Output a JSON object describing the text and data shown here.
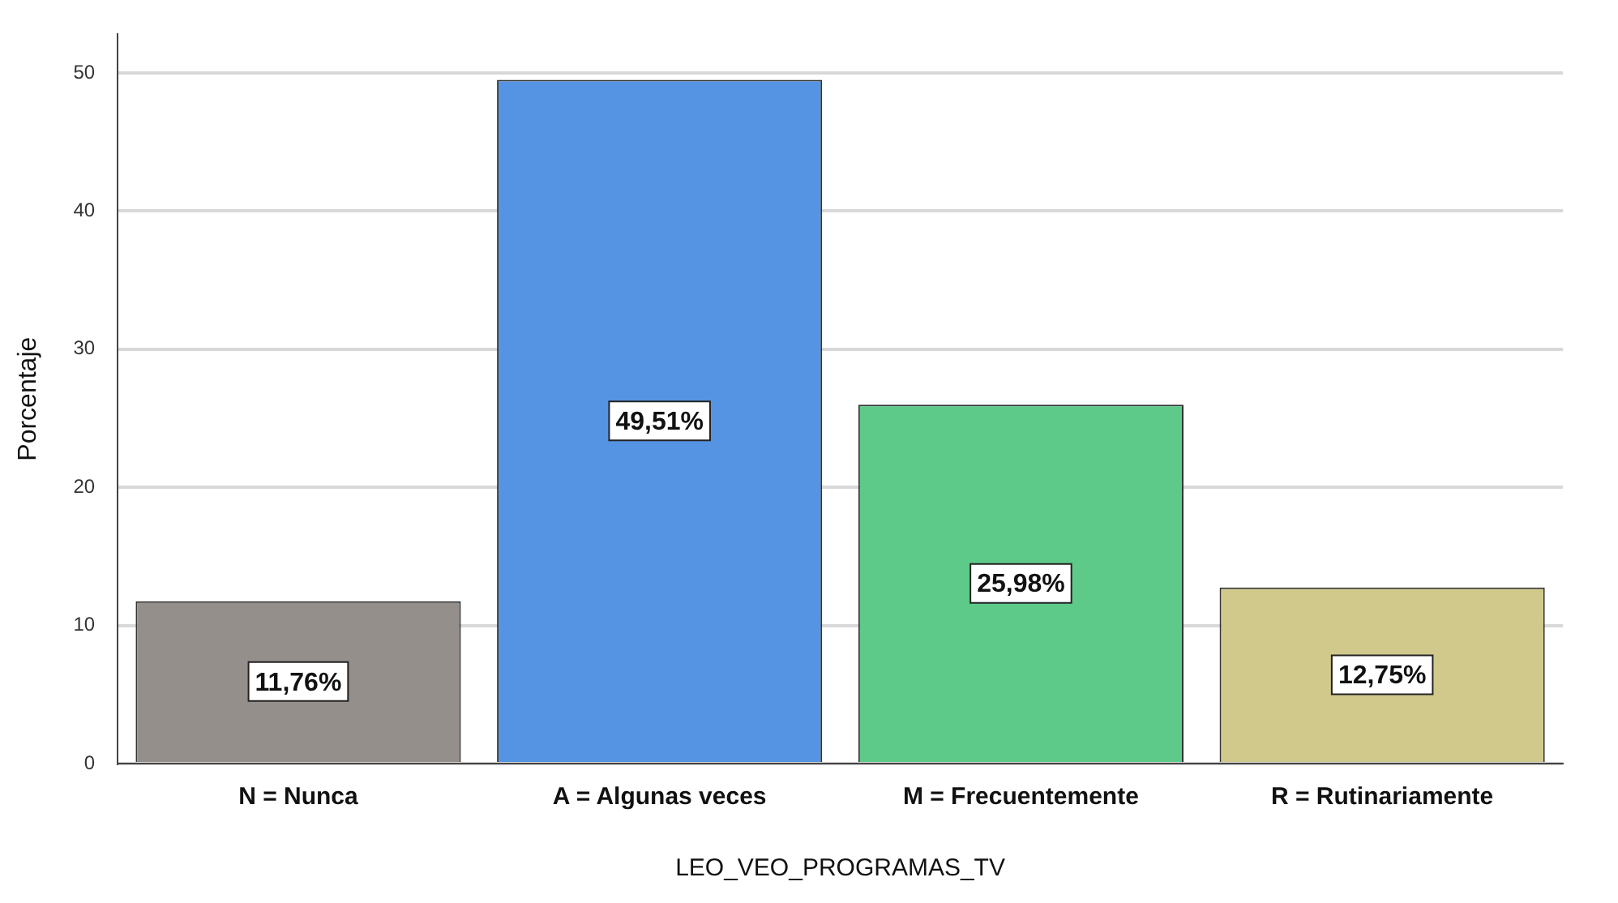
{
  "chart_data": {
    "type": "bar",
    "xlabel": "LEO_VEO_PROGRAMAS_TV",
    "ylabel": "Porcentaje",
    "categories": [
      "N = Nunca",
      "A = Algunas veces",
      "M = Frecuentemente",
      "R = Rutinariamente"
    ],
    "values": [
      11.76,
      49.51,
      25.98,
      12.75
    ],
    "colors": [
      "#958f8c",
      "#5594e3",
      "#5dca8a",
      "#d1c98c"
    ],
    "value_labels": [
      "11,76%",
      "49,51%",
      "25,98%",
      "12,75%"
    ],
    "ylim": [
      0,
      52.8
    ],
    "yticks": [
      0,
      10,
      20,
      30,
      40,
      50
    ],
    "grid": "y",
    "legend": false
  }
}
